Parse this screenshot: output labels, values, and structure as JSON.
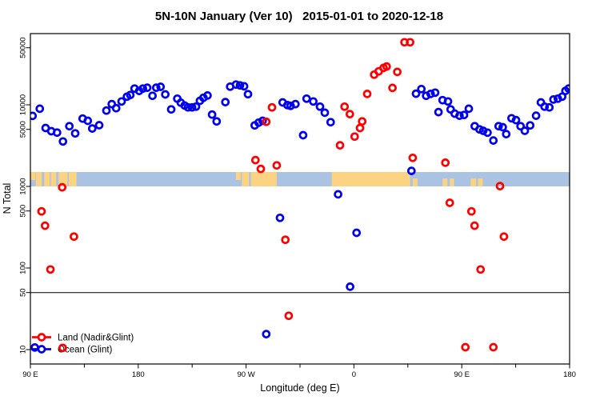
{
  "title": "5N-10N January (Ver 10)   2015-01-01 to 2020-12-18",
  "chart_data": {
    "type": "scatter",
    "title": "5N-10N January (Ver 10)  2015-01-01 to 2020-12-18",
    "xlabel": "Longitude (deg E)",
    "ylabel": "N Total",
    "x_axis": {
      "unit": "degrees east, wrapping 90E → 180 → 90W → 0 → 90E → 180",
      "range_deg": [
        90,
        540
      ],
      "major_ticks_deg": [
        90,
        180,
        270,
        360,
        450,
        540
      ],
      "labels": [
        "90 E",
        "180",
        "90 W",
        "0",
        "90 E",
        "180"
      ],
      "minor_ticks_deg": [
        135,
        225,
        315,
        405,
        495
      ]
    },
    "y_axis": {
      "scale": "log",
      "ticks": [
        10,
        50,
        100,
        500,
        1000,
        5000,
        10000,
        50000
      ],
      "tick_labels": [
        "10",
        "50",
        "100",
        "500",
        "1000",
        "5000",
        "10000",
        "50000"
      ],
      "range": [
        8,
        75000
      ]
    },
    "reference_line_y": 50,
    "map_band": {
      "description": "latitude-band map strip drawn across plot",
      "value_range": [
        1000,
        1500
      ],
      "ocean_color": "#aac3e2",
      "land_color": "#fbd382",
      "land_segments_deg": [
        [
          90,
          94,
          "top"
        ],
        [
          94.5,
          99.5,
          "full"
        ],
        [
          101.5,
          106,
          "full"
        ],
        [
          107,
          111.5,
          "full"
        ],
        [
          113.5,
          121,
          "full"
        ],
        [
          122,
          128.5,
          "full"
        ],
        [
          261.5,
          265.5,
          "top"
        ],
        [
          266.5,
          272.5,
          "full"
        ],
        [
          274,
          295.5,
          "full"
        ],
        [
          341.5,
          407,
          "full"
        ],
        [
          409,
          413,
          "bottom"
        ],
        [
          434,
          438,
          "bottom"
        ],
        [
          440,
          443.5,
          "bottom"
        ],
        [
          457.5,
          462,
          "bottom"
        ],
        [
          463.5,
          467.5,
          "bottom"
        ]
      ]
    },
    "series": [
      {
        "name": "Land (Nadir&Glint)",
        "color": "#ff0000",
        "points": [
          [
            99.3,
            495
          ],
          [
            102.2,
            330
          ],
          [
            106.7,
            96
          ],
          [
            116.5,
            975
          ],
          [
            117,
            10.5
          ],
          [
            126.3,
            243
          ],
          [
            277.8,
            2100
          ],
          [
            282.3,
            1640
          ],
          [
            286.8,
            6200
          ],
          [
            291.6,
            9300
          ],
          [
            295.6,
            1810
          ],
          [
            302.8,
            222
          ],
          [
            305.6,
            26
          ],
          [
            348.4,
            3190
          ],
          [
            352.2,
            9500
          ],
          [
            356.6,
            7700
          ],
          [
            360.6,
            4080
          ],
          [
            365.1,
            5200
          ],
          [
            366.9,
            6270
          ],
          [
            371.1,
            13600
          ],
          [
            376.9,
            23400
          ],
          [
            380.6,
            25700
          ],
          [
            384.7,
            28300
          ],
          [
            387.3,
            29500
          ],
          [
            392.2,
            16100
          ],
          [
            396.2,
            25300
          ],
          [
            402.2,
            58500
          ],
          [
            406.9,
            58500
          ],
          [
            409.1,
            2240
          ],
          [
            436.3,
            1950
          ],
          [
            440,
            630
          ],
          [
            453,
            10.7
          ],
          [
            458.1,
            495
          ],
          [
            460.7,
            330
          ],
          [
            465.7,
            96
          ],
          [
            476.4,
            10.7
          ],
          [
            481.9,
            1010
          ],
          [
            485.2,
            243
          ]
        ]
      },
      {
        "name": "Ocean (Glint)",
        "color": "#0000ee",
        "points": [
          [
            91.8,
            7300
          ],
          [
            93.7,
            10.6
          ],
          [
            97.8,
            8950
          ],
          [
            102.7,
            5200
          ],
          [
            107.4,
            4750
          ],
          [
            112.2,
            4570
          ],
          [
            117.2,
            3560
          ],
          [
            122.5,
            5470
          ],
          [
            127.4,
            4470
          ],
          [
            133.6,
            6780
          ],
          [
            137.9,
            6360
          ],
          [
            141.6,
            5130
          ],
          [
            147.4,
            5620
          ],
          [
            153.4,
            8500
          ],
          [
            157.9,
            10200
          ],
          [
            161.6,
            9100
          ],
          [
            166.1,
            11000
          ],
          [
            170.6,
            12600
          ],
          [
            173.4,
            13200
          ],
          [
            176.9,
            15800
          ],
          [
            180.8,
            14800
          ],
          [
            183.9,
            15800
          ],
          [
            187.5,
            16200
          ],
          [
            191.9,
            12900
          ],
          [
            195,
            16200
          ],
          [
            198.6,
            16600
          ],
          [
            202.6,
            13400
          ],
          [
            207.5,
            8800
          ],
          [
            212.6,
            11900
          ],
          [
            215.5,
            10600
          ],
          [
            218.7,
            9800
          ],
          [
            221.5,
            9300
          ],
          [
            224.9,
            9300
          ],
          [
            228.2,
            9500
          ],
          [
            231.5,
            11200
          ],
          [
            234.4,
            12200
          ],
          [
            237.8,
            13000
          ],
          [
            241.6,
            7600
          ],
          [
            245.4,
            6270
          ],
          [
            252.7,
            10800
          ],
          [
            256.7,
            16700
          ],
          [
            261.6,
            17700
          ],
          [
            264.9,
            17300
          ],
          [
            268.3,
            16900
          ],
          [
            271.6,
            13500
          ],
          [
            277.2,
            5600
          ],
          [
            280.5,
            6050
          ],
          [
            283.8,
            6370
          ],
          [
            286.8,
            15.5
          ],
          [
            298.3,
            412
          ],
          [
            300.5,
            10700
          ],
          [
            304.5,
            9900
          ],
          [
            307.2,
            9700
          ],
          [
            311.2,
            10200
          ],
          [
            317.6,
            4240
          ],
          [
            320.5,
            11900
          ],
          [
            326.1,
            11000
          ],
          [
            331.7,
            9500
          ],
          [
            335.7,
            8000
          ],
          [
            340.6,
            6130
          ],
          [
            346.8,
            800
          ],
          [
            356.8,
            59
          ],
          [
            362.2,
            270
          ],
          [
            408,
            1550
          ],
          [
            411.8,
            13700
          ],
          [
            416.3,
            15600
          ],
          [
            420.3,
            12900
          ],
          [
            424,
            13600
          ],
          [
            427.8,
            14100
          ],
          [
            430.6,
            8150
          ],
          [
            434,
            11400
          ],
          [
            438.5,
            11000
          ],
          [
            440.7,
            8800
          ],
          [
            444.1,
            7800
          ],
          [
            448.1,
            7350
          ],
          [
            451.9,
            7500
          ],
          [
            455.9,
            8950
          ],
          [
            460.8,
            5470
          ],
          [
            464.8,
            5000
          ],
          [
            467.9,
            4800
          ],
          [
            471.5,
            4560
          ],
          [
            476.4,
            3650
          ],
          [
            480.8,
            5470
          ],
          [
            484.2,
            5320
          ],
          [
            487.1,
            4380
          ],
          [
            491.5,
            6850
          ],
          [
            495.3,
            6500
          ],
          [
            499.1,
            5470
          ],
          [
            502.6,
            4800
          ],
          [
            507.1,
            5600
          ],
          [
            512,
            7350
          ],
          [
            516,
            10700
          ],
          [
            519.1,
            9500
          ],
          [
            523.1,
            9300
          ],
          [
            526.5,
            11600
          ],
          [
            530.2,
            11900
          ],
          [
            533.8,
            12600
          ],
          [
            536.5,
            14800
          ],
          [
            539.2,
            15800
          ]
        ]
      }
    ],
    "legend_position": "bottom-left"
  },
  "legend": {
    "items": [
      {
        "label": "Land (Nadir&Glint)",
        "color": "#ff0000"
      },
      {
        "label": "Ocean (Glint)",
        "color": "#0000ee"
      }
    ]
  }
}
